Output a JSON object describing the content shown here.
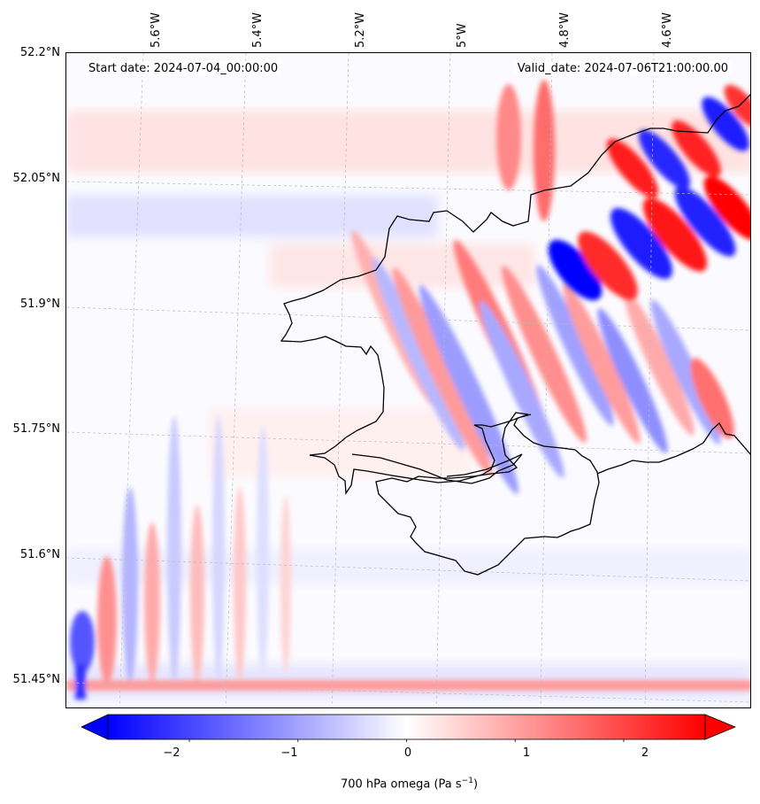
{
  "map": {
    "title_left": "Start date: 2024-07-04_00:00:00",
    "title_right": "Valid_date: 2024-07-06T21:00:00.00",
    "longitude_labels": [
      "5.6°W",
      "5.4°W",
      "5.2°W",
      "5°W",
      "4.8°W",
      "4.6°W"
    ],
    "latitude_labels": [
      "52.2°N",
      "52.05°N",
      "51.9°N",
      "51.75°N",
      "51.6°N",
      "51.45°N"
    ],
    "field": "700 hPa omega",
    "coastline_color": "#000000",
    "gridline_color": "#bbbbbb"
  },
  "colorbar": {
    "label_text": "700 hPa omega (Pa s",
    "label_superscript": "−1",
    "label_close": ")",
    "ticks": [
      "−2",
      "−1",
      "0",
      "1",
      "2"
    ],
    "tick_values": [
      -2,
      -1,
      0,
      1,
      2
    ],
    "range": [
      -2.75,
      2.75
    ],
    "colormap": "bwr",
    "color_min": "#0000ff",
    "color_mid": "#ffffff",
    "color_max": "#ff0000",
    "extend": "both"
  }
}
